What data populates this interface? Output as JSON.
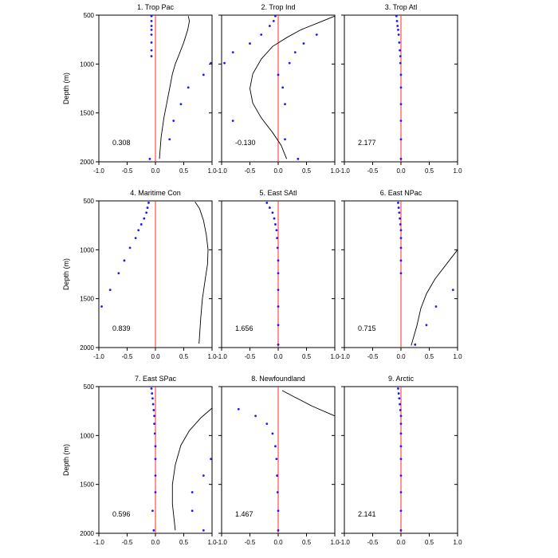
{
  "figure": {
    "ylabel": "Depth (m)"
  },
  "chart_data": [
    {
      "type": "scatter",
      "title": "1. Trop Pac",
      "value_label": "0.308",
      "xlim": [
        -1,
        1
      ],
      "ylim": [
        2000,
        500
      ],
      "xticks": [
        -1.0,
        -0.5,
        0.0,
        0.5,
        1.0
      ],
      "yticks": [
        500,
        1000,
        1500,
        2000
      ],
      "points": [
        [
          -0.07,
          510
        ],
        [
          -0.07,
          560
        ],
        [
          -0.07,
          610
        ],
        [
          -0.07,
          650
        ],
        [
          -0.07,
          700
        ],
        [
          -0.07,
          780
        ],
        [
          -0.07,
          860
        ],
        [
          -0.07,
          920
        ],
        [
          0.98,
          990
        ],
        [
          0.85,
          1110
        ],
        [
          0.58,
          1240
        ],
        [
          0.45,
          1410
        ],
        [
          0.32,
          1580
        ],
        [
          0.25,
          1770
        ],
        [
          -0.1,
          1970
        ]
      ],
      "curve": [
        [
          0.58,
          510
        ],
        [
          0.6,
          560
        ],
        [
          0.57,
          650
        ],
        [
          0.5,
          780
        ],
        [
          0.42,
          900
        ],
        [
          0.35,
          1000
        ],
        [
          0.3,
          1100
        ],
        [
          0.25,
          1250
        ],
        [
          0.2,
          1400
        ],
        [
          0.15,
          1550
        ],
        [
          0.1,
          1750
        ],
        [
          0.07,
          1970
        ]
      ]
    },
    {
      "type": "scatter",
      "title": "2. Trop Ind",
      "value_label": "-0.130",
      "xlim": [
        -1,
        1
      ],
      "ylim": [
        2000,
        500
      ],
      "xticks": [
        -1.0,
        -0.5,
        0.0,
        0.5,
        1.0
      ],
      "yticks": [
        500,
        1000,
        1500,
        2000
      ],
      "points": [
        [
          -0.05,
          510
        ],
        [
          -0.08,
          560
        ],
        [
          -0.15,
          610
        ],
        [
          -0.3,
          700
        ],
        [
          -0.5,
          790
        ],
        [
          -0.8,
          880
        ],
        [
          -0.95,
          990
        ],
        [
          0.0,
          1110
        ],
        [
          0.08,
          1240
        ],
        [
          0.12,
          1410
        ],
        [
          -0.8,
          1580
        ],
        [
          0.12,
          1770
        ],
        [
          0.35,
          1970
        ]
      ],
      "curve": [
        [
          1.0,
          510
        ],
        [
          0.7,
          580
        ],
        [
          0.4,
          650
        ],
        [
          0.15,
          730
        ],
        [
          -0.1,
          820
        ],
        [
          -0.3,
          950
        ],
        [
          -0.45,
          1100
        ],
        [
          -0.5,
          1250
        ],
        [
          -0.45,
          1400
        ],
        [
          -0.3,
          1550
        ],
        [
          -0.1,
          1700
        ],
        [
          0.05,
          1830
        ],
        [
          0.15,
          1970
        ]
      ],
      "extra_points": [
        [
          0.68,
          700
        ],
        [
          0.45,
          790
        ],
        [
          0.3,
          880
        ],
        [
          0.2,
          990
        ]
      ]
    },
    {
      "type": "scatter",
      "title": "3. Trop Atl",
      "value_label": "2.177",
      "xlim": [
        -1,
        1
      ],
      "ylim": [
        2000,
        500
      ],
      "xticks": [
        -1.0,
        -0.5,
        0.0,
        0.5,
        1.0
      ],
      "yticks": [
        500,
        1000,
        1500,
        2000
      ],
      "points": [
        [
          -0.08,
          510
        ],
        [
          -0.07,
          560
        ],
        [
          -0.06,
          610
        ],
        [
          -0.05,
          650
        ],
        [
          -0.04,
          700
        ],
        [
          -0.03,
          780
        ],
        [
          -0.02,
          860
        ],
        [
          -0.01,
          920
        ],
        [
          -0.01,
          990
        ],
        [
          0.0,
          1110
        ],
        [
          0.0,
          1240
        ],
        [
          0.0,
          1410
        ],
        [
          0.0,
          1580
        ],
        [
          0.0,
          1770
        ],
        [
          0.0,
          1970
        ]
      ],
      "curve": []
    },
    {
      "type": "scatter",
      "title": "4. Maritime Con",
      "value_label": "0.839",
      "xlim": [
        -1,
        1
      ],
      "ylim": [
        2000,
        500
      ],
      "xticks": [
        -1.0,
        -0.5,
        0.0,
        0.5,
        1.0
      ],
      "yticks": [
        500,
        1000,
        1500,
        2000
      ],
      "points": [
        [
          -0.12,
          520
        ],
        [
          -0.14,
          570
        ],
        [
          -0.16,
          620
        ],
        [
          -0.2,
          680
        ],
        [
          -0.25,
          740
        ],
        [
          -0.3,
          800
        ],
        [
          -0.35,
          880
        ],
        [
          -0.45,
          980
        ],
        [
          -0.55,
          1110
        ],
        [
          -0.65,
          1240
        ],
        [
          -0.8,
          1410
        ],
        [
          -0.95,
          1580
        ]
      ],
      "curve": [
        [
          0.7,
          510
        ],
        [
          0.78,
          580
        ],
        [
          0.85,
          700
        ],
        [
          0.9,
          850
        ],
        [
          0.93,
          1000
        ],
        [
          0.92,
          1150
        ],
        [
          0.88,
          1300
        ],
        [
          0.83,
          1500
        ],
        [
          0.8,
          1700
        ],
        [
          0.77,
          1960
        ]
      ]
    },
    {
      "type": "scatter",
      "title": "5. East SAtl",
      "value_label": "1.656",
      "xlim": [
        -1,
        1
      ],
      "ylim": [
        2000,
        500
      ],
      "xticks": [
        -1.0,
        -0.5,
        0.0,
        0.5,
        1.0
      ],
      "yticks": [
        500,
        1000,
        1500,
        2000
      ],
      "points": [
        [
          -0.2,
          520
        ],
        [
          -0.15,
          570
        ],
        [
          -0.1,
          620
        ],
        [
          -0.07,
          680
        ],
        [
          -0.05,
          740
        ],
        [
          -0.03,
          800
        ],
        [
          -0.02,
          880
        ],
        [
          -0.01,
          980
        ],
        [
          0.0,
          1110
        ],
        [
          0.0,
          1240
        ],
        [
          0.0,
          1410
        ],
        [
          0.0,
          1580
        ],
        [
          0.0,
          1770
        ],
        [
          0.0,
          1970
        ]
      ],
      "curve": []
    },
    {
      "type": "scatter",
      "title": "6. East NPac",
      "value_label": "0.715",
      "xlim": [
        -1,
        1
      ],
      "ylim": [
        2000,
        500
      ],
      "xticks": [
        -1.0,
        -0.5,
        0.0,
        0.5,
        1.0
      ],
      "yticks": [
        500,
        1000,
        1500,
        2000
      ],
      "points": [
        [
          -0.05,
          520
        ],
        [
          -0.04,
          570
        ],
        [
          -0.03,
          620
        ],
        [
          -0.02,
          680
        ],
        [
          -0.01,
          740
        ],
        [
          0.0,
          800
        ],
        [
          0.0,
          880
        ],
        [
          0.0,
          980
        ],
        [
          0.0,
          1110
        ],
        [
          0.0,
          1240
        ],
        [
          0.92,
          1410
        ],
        [
          0.62,
          1580
        ],
        [
          0.45,
          1770
        ],
        [
          0.25,
          1970
        ]
      ],
      "curve": [
        [
          1.0,
          1000
        ],
        [
          0.8,
          1150
        ],
        [
          0.6,
          1300
        ],
        [
          0.45,
          1450
        ],
        [
          0.35,
          1600
        ],
        [
          0.28,
          1780
        ],
        [
          0.18,
          1980
        ]
      ]
    },
    {
      "type": "scatter",
      "title": "7. East SPac",
      "value_label": "0.596",
      "xlim": [
        -1,
        1
      ],
      "ylim": [
        2000,
        500
      ],
      "xticks": [
        -1.0,
        -0.5,
        0.0,
        0.5,
        1.0
      ],
      "yticks": [
        500,
        1000,
        1500,
        2000
      ],
      "points": [
        [
          -0.07,
          520
        ],
        [
          -0.06,
          570
        ],
        [
          -0.05,
          620
        ],
        [
          -0.04,
          680
        ],
        [
          -0.03,
          740
        ],
        [
          -0.02,
          800
        ],
        [
          -0.02,
          880
        ],
        [
          -0.01,
          980
        ],
        [
          0.0,
          1110
        ],
        [
          0.0,
          1240
        ],
        [
          0.0,
          1410
        ],
        [
          0.0,
          1580
        ],
        [
          -0.05,
          1770
        ],
        [
          -0.03,
          1970
        ]
      ],
      "curve": [
        [
          1.0,
          720
        ],
        [
          0.8,
          820
        ],
        [
          0.6,
          950
        ],
        [
          0.45,
          1100
        ],
        [
          0.35,
          1300
        ],
        [
          0.3,
          1500
        ],
        [
          0.3,
          1700
        ],
        [
          0.35,
          1970
        ]
      ],
      "extra_points": [
        [
          0.98,
          1240
        ],
        [
          0.85,
          1410
        ],
        [
          0.65,
          1580
        ],
        [
          0.65,
          1770
        ],
        [
          0.85,
          1970
        ]
      ]
    },
    {
      "type": "scatter",
      "title": "8. Newfoundland",
      "value_label": "1.467",
      "xlim": [
        -1,
        1
      ],
      "ylim": [
        2000,
        500
      ],
      "xticks": [
        -1.0,
        -0.5,
        0.0,
        0.5,
        1.0
      ],
      "yticks": [
        500,
        1000,
        1500,
        2000
      ],
      "points": [
        [
          -0.7,
          730
        ],
        [
          -0.4,
          800
        ],
        [
          -0.2,
          880
        ],
        [
          -0.1,
          980
        ],
        [
          -0.05,
          1110
        ],
        [
          -0.03,
          1240
        ],
        [
          -0.02,
          1410
        ],
        [
          -0.01,
          1580
        ],
        [
          0.0,
          1770
        ],
        [
          0.0,
          1970
        ]
      ],
      "curve": [
        [
          0.07,
          540
        ],
        [
          0.3,
          610
        ],
        [
          0.6,
          700
        ],
        [
          1.0,
          800
        ]
      ]
    },
    {
      "type": "scatter",
      "title": "9. Arctic",
      "value_label": "2.141",
      "xlim": [
        -1,
        1
      ],
      "ylim": [
        2000,
        500
      ],
      "xticks": [
        -1.0,
        -0.5,
        0.0,
        0.5,
        1.0
      ],
      "yticks": [
        500,
        1000,
        1500,
        2000
      ],
      "points": [
        [
          -0.05,
          520
        ],
        [
          -0.04,
          570
        ],
        [
          -0.03,
          620
        ],
        [
          -0.02,
          680
        ],
        [
          -0.01,
          740
        ],
        [
          0.0,
          800
        ],
        [
          0.0,
          880
        ],
        [
          0.0,
          980
        ],
        [
          0.0,
          1110
        ],
        [
          0.0,
          1240
        ],
        [
          0.0,
          1410
        ],
        [
          0.0,
          1580
        ],
        [
          0.0,
          1770
        ],
        [
          0.0,
          1970
        ]
      ],
      "curve": []
    }
  ]
}
